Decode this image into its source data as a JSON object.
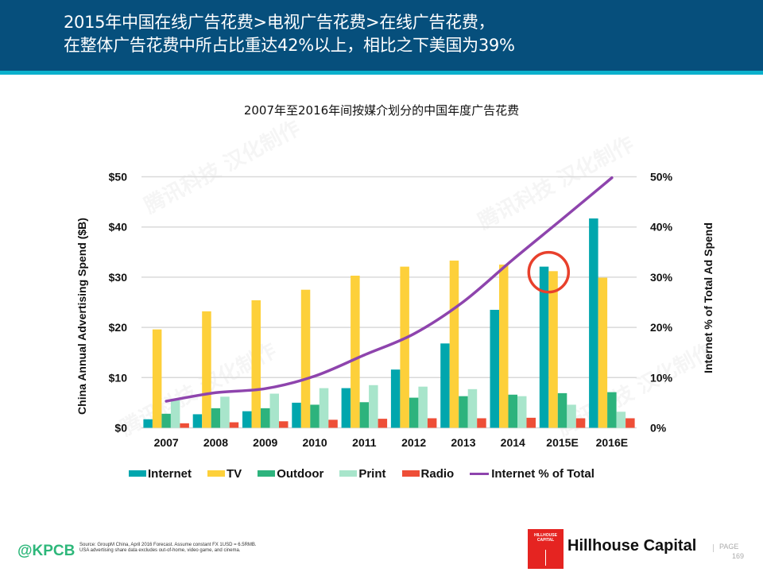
{
  "header": {
    "title_line1": "2015年中国在线广告花费>电视广告花费>在线广告花费，",
    "title_line2": "在整体广告花费中所占比重达42%以上，相比之下美国为39%"
  },
  "chart_data": {
    "type": "bar",
    "title": "2007年至2016年间按媒介划分的中国年度广告花费",
    "xlabel": "",
    "ylabel": "China Annual Advertising Spend ($B)",
    "y2label": "Internet % of Total Ad Spend",
    "ylim": [
      0,
      50
    ],
    "y2lim": [
      0,
      50
    ],
    "yticks": [
      "$0",
      "$10",
      "$20",
      "$30",
      "$40",
      "$50"
    ],
    "y2ticks": [
      "0%",
      "10%",
      "20%",
      "30%",
      "40%",
      "50%"
    ],
    "grid": true,
    "legend_position": "bottom",
    "categories": [
      "2007",
      "2008",
      "2009",
      "2010",
      "2011",
      "2012",
      "2013",
      "2014",
      "2015E",
      "2016E"
    ],
    "series": [
      {
        "name": "Internet",
        "color": "#00a6ad",
        "values": [
          1.7,
          2.7,
          3.3,
          5.0,
          7.9,
          11.6,
          16.8,
          23.5,
          32.1,
          41.7
        ]
      },
      {
        "name": "TV",
        "color": "#fdd03a",
        "values": [
          19.6,
          23.2,
          25.4,
          27.5,
          30.3,
          32.1,
          33.3,
          32.5,
          31.2,
          29.9
        ]
      },
      {
        "name": "Outdoor",
        "color": "#2db37d",
        "values": [
          2.8,
          3.9,
          3.9,
          4.6,
          5.1,
          6.0,
          6.3,
          6.6,
          6.9,
          7.1
        ]
      },
      {
        "name": "Print",
        "color": "#a8e5cb",
        "values": [
          5.5,
          6.2,
          6.8,
          7.9,
          8.5,
          8.2,
          7.7,
          6.3,
          4.6,
          3.2
        ]
      },
      {
        "name": "Radio",
        "color": "#ee4e37",
        "values": [
          0.9,
          1.1,
          1.3,
          1.6,
          1.8,
          1.9,
          1.9,
          2.0,
          1.9,
          1.9
        ]
      }
    ],
    "line_series": {
      "name": "Internet % of Total",
      "color": "#8e44ad",
      "axis": "right",
      "values": [
        5.3,
        7.0,
        7.8,
        10.3,
        14.5,
        18.7,
        25.1,
        33.5,
        41.6,
        49.8
      ]
    },
    "annotation": {
      "type": "circle",
      "target": "2015E",
      "color": "#e8402c"
    }
  },
  "legend": {
    "items": [
      {
        "label": "Internet",
        "color": "#00a6ad",
        "kind": "box"
      },
      {
        "label": "TV",
        "color": "#fdd03a",
        "kind": "box"
      },
      {
        "label": "Outdoor",
        "color": "#2db37d",
        "kind": "box"
      },
      {
        "label": "Print",
        "color": "#a8e5cb",
        "kind": "box"
      },
      {
        "label": "Radio",
        "color": "#ee4e37",
        "kind": "box"
      },
      {
        "label": "Internet % of Total",
        "color": "#8e44ad",
        "kind": "line"
      }
    ]
  },
  "footer": {
    "brand": "@KPCB",
    "source_line1": "Source: GroupM China, April 2016 Forecast. Assume constant FX 1USD = 6.5RMB.",
    "source_line2": "USA advertising share data excludes out-of-home, video game, and cinema.",
    "logo_line1": "HILLHOUSE",
    "logo_line2": "CAPITAL",
    "company": "Hillhouse Capital",
    "page_label": "PAGE",
    "page_number": "169"
  },
  "watermark": {
    "text": "腾讯科技 汉化制作"
  }
}
